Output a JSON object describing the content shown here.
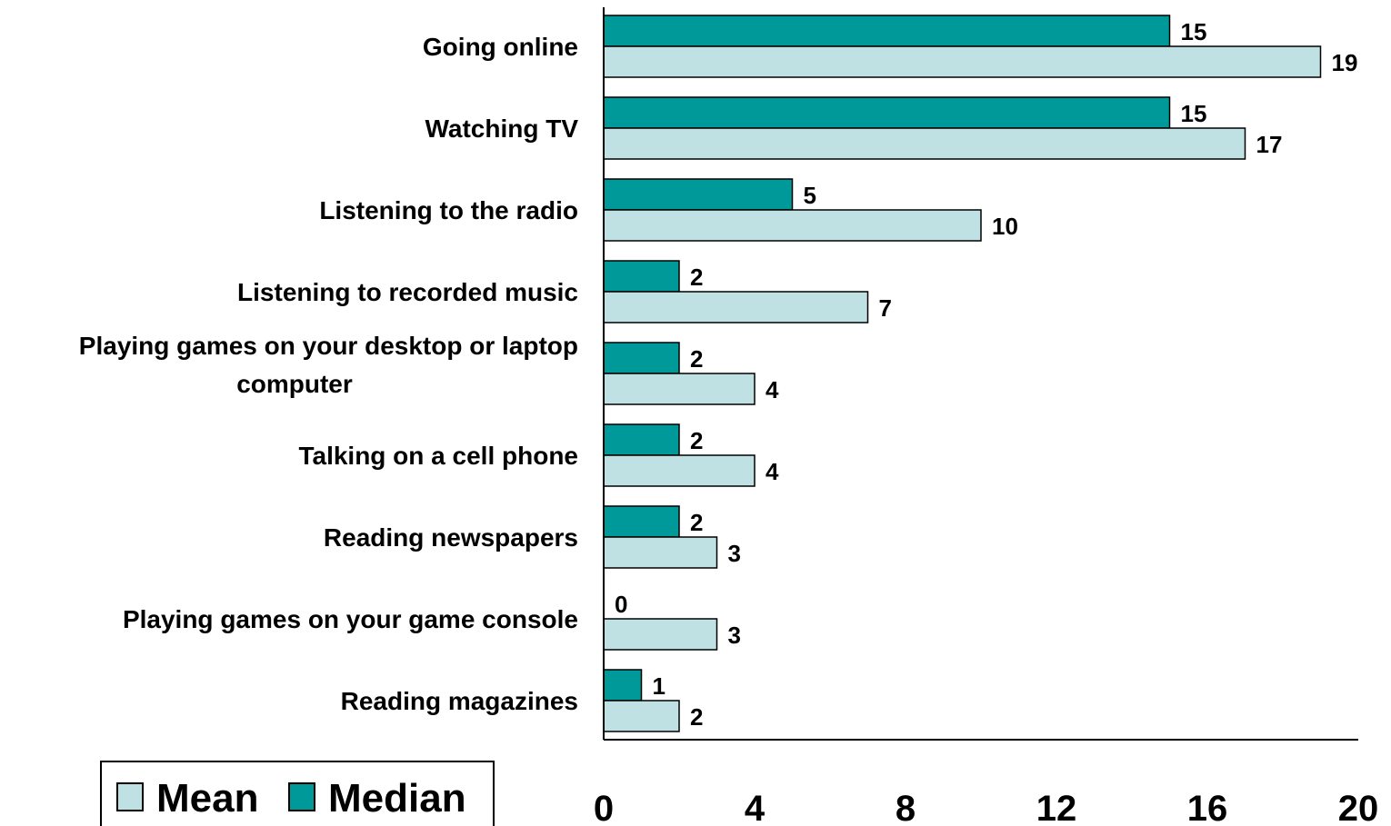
{
  "chart_data": {
    "type": "bar",
    "orientation": "horizontal",
    "categories": [
      [
        "Going online"
      ],
      [
        "Watching TV"
      ],
      [
        "Listening to the radio"
      ],
      [
        "Listening to recorded music"
      ],
      [
        "Playing games on your desktop or laptop",
        "computer"
      ],
      [
        "Talking on a cell phone"
      ],
      [
        "Reading newspapers"
      ],
      [
        "Playing games on your game console"
      ],
      [
        "Reading magazines"
      ]
    ],
    "series": [
      {
        "name": "Median",
        "values": [
          15,
          15,
          5,
          2,
          2,
          2,
          2,
          0,
          1
        ]
      },
      {
        "name": "Mean",
        "values": [
          19,
          17,
          10,
          7,
          4,
          4,
          3,
          3,
          2
        ]
      }
    ],
    "xlim": [
      0,
      20
    ],
    "xticks": [
      0,
      4,
      8,
      12,
      16,
      20
    ],
    "legend": {
      "placement": "bottom-left",
      "entries": [
        "Mean",
        "Median"
      ]
    },
    "grid": false,
    "colors": {
      "Median": "#009999",
      "Mean": "#bfe1e3"
    }
  }
}
